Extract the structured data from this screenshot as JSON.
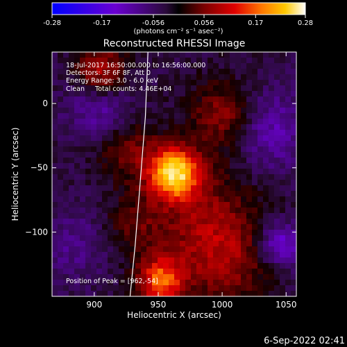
{
  "colorbar": {
    "ticks": [
      -0.28,
      -0.17,
      -0.056,
      0.056,
      0.17,
      0.28
    ],
    "tick_labels": [
      "-0.28",
      "-0.17",
      "-0.056",
      "0.056",
      "0.17",
      "0.28"
    ],
    "unit_label": "(photons cm⁻² s⁻¹ asec⁻²)",
    "range": [
      -0.28,
      0.28
    ],
    "colors": [
      "#0000ff",
      "#6a00d0",
      "#2a0a3a",
      "#000000",
      "#7a0000",
      "#e00000",
      "#ff7a00",
      "#ffc800",
      "#ffffa0",
      "#ffffff"
    ]
  },
  "chart_data": {
    "type": "heatmap",
    "title": "Reconstructed RHESSI Image",
    "xlabel": "Heliocentric X (arcsec)",
    "ylabel": "Heliocentric Y (arcsec)",
    "xlim": [
      867,
      1058
    ],
    "ylim": [
      -150,
      40
    ],
    "x_ticks": [
      900,
      950,
      1000,
      1050
    ],
    "x_tick_labels": [
      "900",
      "950",
      "1000",
      "1050"
    ],
    "y_ticks": [
      0,
      -50,
      -100
    ],
    "y_tick_labels": [
      "0",
      "−50",
      "−100"
    ],
    "value_range": [
      -0.28,
      0.28
    ],
    "sources": [
      {
        "x": 962,
        "y": -54,
        "value": 0.28
      },
      {
        "x": 952,
        "y": -138,
        "value": 0.2
      },
      {
        "x": 905,
        "y": 25,
        "value": 0.14
      },
      {
        "x": 1002,
        "y": -10,
        "value": 0.05
      }
    ],
    "limb_curve": [
      [
        942,
        40
      ],
      [
        940,
        -10
      ],
      [
        936,
        -60
      ],
      [
        932,
        -110
      ],
      [
        928,
        -150
      ]
    ],
    "annotations": [
      "18-Jul-2017 16:50:00.000 to 16:56:00.000",
      "Detectors: 3F 6F 8F, Att 0",
      "Energy Range: 3.0 - 6.0 keV",
      "Clean     Total counts: 4.46E+04",
      "Position of Peak = [962,-54]"
    ],
    "peak_position": [
      962,
      -54
    ]
  },
  "footer": {
    "timestamp": "6-Sep-2022 02:41"
  }
}
